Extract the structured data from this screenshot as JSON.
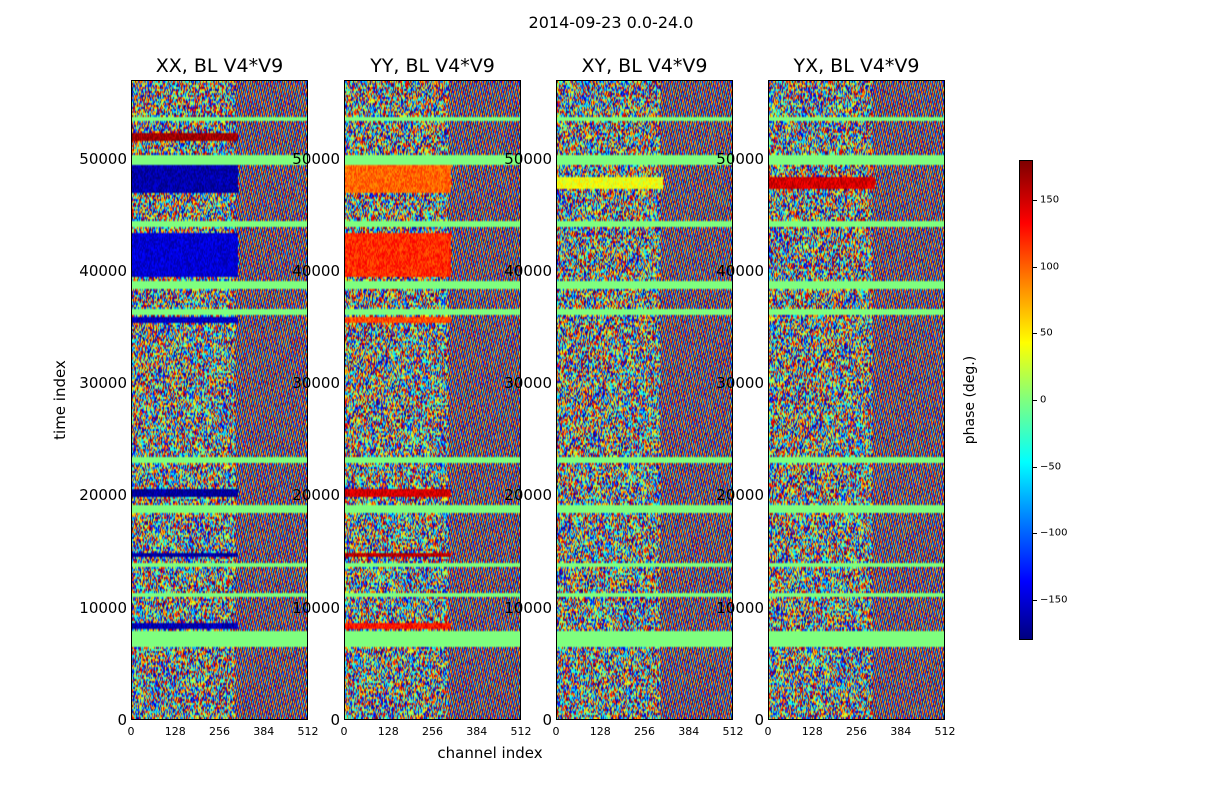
{
  "title": "2014-09-23 0.0-24.0",
  "chart_data": {
    "type": "heatmap",
    "xlabel": "channel index",
    "ylabel": "time index",
    "colorbar_label": "phase (deg.)",
    "xlim": [
      0,
      512
    ],
    "ylim": [
      0,
      57000
    ],
    "clim": [
      -180,
      180
    ],
    "colormap": "jet",
    "xticks": [
      "0",
      "128",
      "256",
      "384",
      "512"
    ],
    "yticks": [
      "0",
      "10000",
      "20000",
      "30000",
      "40000",
      "50000"
    ],
    "colorbar_ticks": [
      "150",
      "100",
      "50",
      "0",
      "−50",
      "−100",
      "−150"
    ],
    "colorbar_tick_values": [
      150,
      100,
      50,
      0,
      -50,
      -100,
      -150
    ],
    "panels": [
      {
        "name": "XX",
        "title": "XX, BL V4*V9",
        "bands": [
          [
            47000,
            49500,
            -165,
            310
          ],
          [
            39500,
            43500,
            -150,
            310
          ],
          [
            35500,
            36000,
            -160,
            310
          ],
          [
            20000,
            20700,
            -170,
            310
          ],
          [
            14500,
            15000,
            -170,
            310
          ],
          [
            8200,
            8700,
            -160,
            310
          ],
          [
            51700,
            52500,
            170,
            310
          ]
        ]
      },
      {
        "name": "YY",
        "title": "YY, BL V4*V9",
        "bands": [
          [
            47000,
            49500,
            100,
            310
          ],
          [
            39500,
            43500,
            120,
            310
          ],
          [
            35500,
            36000,
            110,
            310
          ],
          [
            20000,
            20700,
            150,
            310
          ],
          [
            14500,
            15000,
            160,
            310
          ],
          [
            8200,
            8700,
            130,
            310
          ]
        ]
      },
      {
        "name": "XY",
        "title": "XY, BL V4*V9",
        "bands": [
          [
            47500,
            48500,
            40,
            310
          ]
        ]
      },
      {
        "name": "YX",
        "title": "YX, BL V4*V9",
        "bands": [
          [
            47500,
            48500,
            150,
            310
          ]
        ]
      }
    ],
    "flagged_rows": [
      [
        6500,
        8000
      ],
      [
        49500,
        50500
      ],
      [
        38500,
        39200
      ],
      [
        44000,
        44600
      ],
      [
        23000,
        23500
      ],
      [
        18500,
        19200
      ],
      [
        13600,
        14000
      ],
      [
        36200,
        36700
      ],
      [
        53500,
        53800
      ],
      [
        10900,
        11300
      ]
    ]
  }
}
